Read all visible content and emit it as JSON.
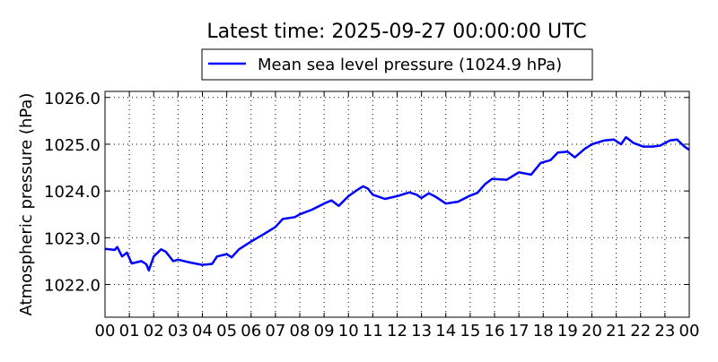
{
  "chart_data": {
    "type": "line",
    "title": "Latest time: 2025-09-27 00:00:00 UTC",
    "xlabel": "",
    "ylabel": "Atmospheric pressure (hPa)",
    "ylim": [
      1021.3,
      1026.13
    ],
    "xlim": [
      0,
      24
    ],
    "grid": true,
    "legend_placement": "top-center",
    "x_tick_labels": [
      "00",
      "01",
      "02",
      "03",
      "04",
      "05",
      "06",
      "07",
      "08",
      "09",
      "10",
      "11",
      "12",
      "13",
      "14",
      "15",
      "16",
      "17",
      "18",
      "19",
      "20",
      "21",
      "22",
      "23",
      "00"
    ],
    "y_ticks": [
      1022.0,
      1023.0,
      1024.0,
      1025.0,
      1026.0
    ],
    "y_tick_labels": [
      "1022.0",
      "1023.0",
      "1024.0",
      "1025.0",
      "1026.0"
    ],
    "series": [
      {
        "name": "Mean sea level pressure (1024.9 hPa)",
        "color": "#0000ff",
        "x": [
          0,
          0.4,
          0.5,
          0.7,
          0.9,
          1.1,
          1.5,
          1.7,
          1.8,
          2.0,
          2.3,
          2.5,
          2.8,
          3.0,
          3.5,
          4.0,
          4.4,
          4.6,
          5.0,
          5.2,
          5.5,
          6.0,
          6.5,
          7.0,
          7.3,
          7.8,
          8.0,
          8.5,
          9.0,
          9.3,
          9.6,
          10.0,
          10.3,
          10.6,
          10.8,
          11.0,
          11.5,
          12.0,
          12.5,
          12.8,
          13.0,
          13.3,
          13.6,
          14.0,
          14.5,
          15.0,
          15.3,
          15.6,
          15.9,
          16.5,
          17.0,
          17.5,
          17.9,
          18.3,
          18.6,
          19.0,
          19.3,
          19.7,
          20.0,
          20.5,
          20.9,
          21.2,
          21.4,
          21.7,
          22.1,
          22.5,
          22.8,
          23.2,
          23.5,
          23.8,
          24.0
        ],
        "y": [
          1022.76,
          1022.74,
          1022.8,
          1022.6,
          1022.68,
          1022.45,
          1022.5,
          1022.43,
          1022.3,
          1022.6,
          1022.75,
          1022.7,
          1022.5,
          1022.53,
          1022.47,
          1022.42,
          1022.44,
          1022.6,
          1022.65,
          1022.58,
          1022.75,
          1022.92,
          1023.07,
          1023.23,
          1023.4,
          1023.44,
          1023.5,
          1023.6,
          1023.73,
          1023.8,
          1023.68,
          1023.89,
          1024.0,
          1024.1,
          1024.05,
          1023.92,
          1023.83,
          1023.89,
          1023.97,
          1023.92,
          1023.85,
          1023.95,
          1023.87,
          1023.73,
          1023.77,
          1023.9,
          1023.96,
          1024.14,
          1024.26,
          1024.24,
          1024.4,
          1024.35,
          1024.6,
          1024.66,
          1024.82,
          1024.84,
          1024.72,
          1024.9,
          1025.0,
          1025.08,
          1025.1,
          1025.0,
          1025.15,
          1025.03,
          1024.95,
          1024.95,
          1024.97,
          1025.08,
          1025.1,
          1024.95,
          1024.88
        ]
      }
    ]
  }
}
